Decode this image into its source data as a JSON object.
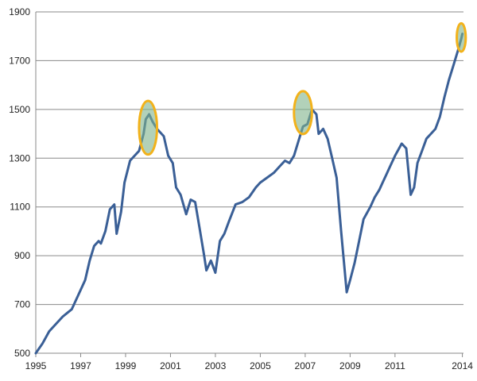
{
  "chart_data": {
    "type": "line",
    "title": "",
    "xlabel": "",
    "ylabel": "",
    "xlim": [
      1995.0,
      2014.05
    ],
    "ylim": [
      500,
      1900
    ],
    "grid": true,
    "legend": "none",
    "yticks": [
      500,
      700,
      900,
      1100,
      1300,
      1500,
      1700,
      1900
    ],
    "xticks": [
      1995,
      1997,
      1999,
      2001,
      2003,
      2005,
      2007,
      2009,
      2011,
      2014
    ],
    "xtick_labels": [
      "1995",
      "1997",
      "1999",
      "2001",
      "2003",
      "2005",
      "2007",
      "2009",
      "2011",
      "2014"
    ],
    "series": [
      {
        "color": "#3a5f96",
        "x": [
          1995.0,
          1995.3,
          1995.6,
          1995.9,
          1996.2,
          1996.4,
          1996.6,
          1996.9,
          1997.2,
          1997.4,
          1997.6,
          1997.8,
          1997.9,
          1998.1,
          1998.3,
          1998.5,
          1998.6,
          1998.8,
          1998.95,
          1999.2,
          1999.5,
          1999.6,
          1999.8,
          1999.9,
          2000.05,
          2000.2,
          2000.4,
          2000.7,
          2000.9,
          2001.1,
          2001.25,
          2001.45,
          2001.7,
          2001.9,
          2002.1,
          2002.3,
          2002.5,
          2002.6,
          2002.8,
          2003.0,
          2003.2,
          2003.4,
          2003.6,
          2003.9,
          2004.2,
          2004.5,
          2004.8,
          2005.0,
          2005.3,
          2005.6,
          2005.9,
          2006.1,
          2006.3,
          2006.5,
          2006.7,
          2006.9,
          2007.1,
          2007.3,
          2007.5,
          2007.6,
          2007.8,
          2008.0,
          2008.2,
          2008.4,
          2008.6,
          2008.75,
          2008.85,
          2009.0,
          2009.2,
          2009.4,
          2009.6,
          2009.9,
          2010.1,
          2010.3,
          2010.45,
          2010.6,
          2010.8,
          2011.0,
          2011.3,
          2011.5,
          2011.7,
          2011.85,
          2012.0,
          2012.2,
          2012.4,
          2012.6,
          2012.8,
          2013.0,
          2013.2,
          2013.4,
          2013.6,
          2013.8,
          2013.95,
          2014.0
        ],
        "values": [
          500,
          540,
          590,
          620,
          650,
          665,
          680,
          740,
          800,
          880,
          940,
          960,
          950,
          1000,
          1090,
          1110,
          990,
          1080,
          1200,
          1290,
          1320,
          1330,
          1400,
          1460,
          1480,
          1450,
          1420,
          1390,
          1310,
          1280,
          1180,
          1150,
          1070,
          1130,
          1120,
          1010,
          900,
          840,
          880,
          830,
          960,
          990,
          1040,
          1110,
          1120,
          1140,
          1180,
          1200,
          1220,
          1240,
          1270,
          1290,
          1280,
          1310,
          1370,
          1430,
          1440,
          1500,
          1480,
          1400,
          1420,
          1380,
          1300,
          1220,
          1000,
          850,
          750,
          800,
          870,
          960,
          1050,
          1100,
          1140,
          1170,
          1200,
          1230,
          1270,
          1310,
          1360,
          1340,
          1150,
          1180,
          1280,
          1330,
          1380,
          1400,
          1420,
          1470,
          1550,
          1620,
          1680,
          1740,
          1790,
          1810
        ]
      }
    ],
    "annotations": [
      {
        "type": "ellipse",
        "x": 2000.0,
        "y": 1425,
        "rx_years": 0.4,
        "ry_value": 110,
        "stroke": "#f2b21b",
        "fill": "#7fb38a"
      },
      {
        "type": "ellipse",
        "x": 2006.9,
        "y": 1487,
        "rx_years": 0.4,
        "ry_value": 88,
        "stroke": "#f2b21b",
        "fill": "#7fb38a"
      },
      {
        "type": "ellipse",
        "x": 2013.95,
        "y": 1795,
        "rx_years": 0.2,
        "ry_value": 58,
        "stroke": "#f2b21b",
        "fill": "#7fb38a"
      }
    ]
  }
}
